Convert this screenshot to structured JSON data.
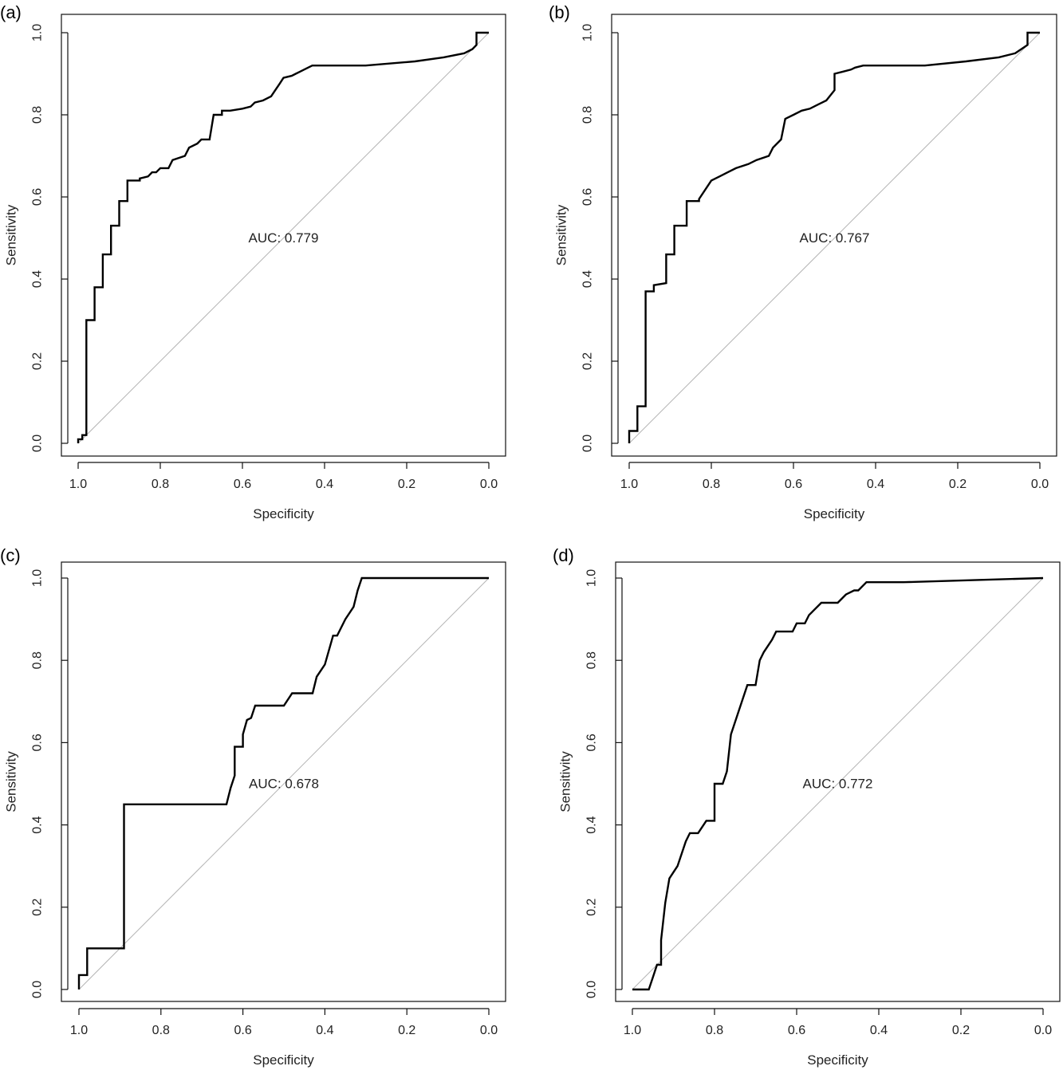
{
  "chart_data": [
    {
      "type": "line",
      "panel_label": "(a)",
      "xlabel": "Specificity",
      "ylabel": "Sensitivity",
      "xlim": [
        1.0,
        0.0
      ],
      "ylim": [
        0.0,
        1.0
      ],
      "x_ticks": [
        "1.0",
        "0.8",
        "0.6",
        "0.4",
        "0.2",
        "0.0"
      ],
      "y_ticks": [
        "0.0",
        "0.2",
        "0.4",
        "0.6",
        "0.8",
        "1.0"
      ],
      "annotation": "AUC: 0.779",
      "reference_line": "diagonal",
      "specificity": [
        1.0,
        1.0,
        0.99,
        0.99,
        0.98,
        0.98,
        0.96,
        0.96,
        0.94,
        0.94,
        0.92,
        0.92,
        0.9,
        0.9,
        0.88,
        0.88,
        0.85,
        0.85,
        0.83,
        0.82,
        0.81,
        0.8,
        0.78,
        0.77,
        0.74,
        0.73,
        0.71,
        0.7,
        0.68,
        0.67,
        0.65,
        0.65,
        0.63,
        0.6,
        0.58,
        0.57,
        0.55,
        0.53,
        0.52,
        0.51,
        0.5,
        0.48,
        0.47,
        0.46,
        0.45,
        0.43,
        0.3,
        0.18,
        0.11,
        0.06,
        0.04,
        0.03,
        0.03,
        0.0
      ],
      "sensitivity": [
        0.0,
        0.01,
        0.01,
        0.02,
        0.02,
        0.3,
        0.3,
        0.38,
        0.38,
        0.46,
        0.46,
        0.53,
        0.53,
        0.59,
        0.59,
        0.64,
        0.64,
        0.645,
        0.65,
        0.66,
        0.66,
        0.67,
        0.67,
        0.69,
        0.7,
        0.72,
        0.73,
        0.74,
        0.74,
        0.8,
        0.8,
        0.81,
        0.81,
        0.815,
        0.82,
        0.83,
        0.835,
        0.845,
        0.86,
        0.875,
        0.89,
        0.895,
        0.9,
        0.905,
        0.91,
        0.92,
        0.92,
        0.93,
        0.94,
        0.95,
        0.96,
        0.97,
        1.0,
        1.0
      ]
    },
    {
      "type": "line",
      "panel_label": "(b)",
      "xlabel": "Specificity",
      "ylabel": "Sensitivity",
      "xlim": [
        1.0,
        0.0
      ],
      "ylim": [
        0.0,
        1.0
      ],
      "x_ticks": [
        "1.0",
        "0.8",
        "0.6",
        "0.4",
        "0.2",
        "0.0"
      ],
      "y_ticks": [
        "0.0",
        "0.2",
        "0.4",
        "0.6",
        "0.8",
        "1.0"
      ],
      "annotation": "AUC: 0.767",
      "reference_line": "diagonal",
      "specificity": [
        1.0,
        1.0,
        0.98,
        0.98,
        0.96,
        0.96,
        0.94,
        0.94,
        0.91,
        0.91,
        0.89,
        0.89,
        0.86,
        0.86,
        0.83,
        0.83,
        0.8,
        0.78,
        0.76,
        0.74,
        0.71,
        0.69,
        0.66,
        0.65,
        0.63,
        0.62,
        0.6,
        0.58,
        0.56,
        0.54,
        0.52,
        0.5,
        0.5,
        0.48,
        0.46,
        0.45,
        0.43,
        0.28,
        0.18,
        0.1,
        0.06,
        0.03,
        0.03,
        0.0
      ],
      "sensitivity": [
        0.0,
        0.03,
        0.03,
        0.09,
        0.09,
        0.37,
        0.37,
        0.385,
        0.39,
        0.46,
        0.46,
        0.53,
        0.53,
        0.59,
        0.59,
        0.595,
        0.64,
        0.65,
        0.66,
        0.67,
        0.68,
        0.69,
        0.7,
        0.72,
        0.74,
        0.79,
        0.8,
        0.81,
        0.815,
        0.825,
        0.835,
        0.86,
        0.9,
        0.905,
        0.91,
        0.915,
        0.92,
        0.92,
        0.93,
        0.94,
        0.95,
        0.97,
        1.0,
        1.0
      ]
    },
    {
      "type": "line",
      "panel_label": "(c)",
      "xlabel": "Specificity",
      "ylabel": "Sensitivity",
      "xlim": [
        1.0,
        0.0
      ],
      "ylim": [
        0.0,
        1.0
      ],
      "x_ticks": [
        "1.0",
        "0.8",
        "0.6",
        "0.4",
        "0.2",
        "0.0"
      ],
      "y_ticks": [
        "0.0",
        "0.2",
        "0.4",
        "0.6",
        "0.8",
        "1.0"
      ],
      "annotation": "AUC: 0.678",
      "reference_line": "diagonal",
      "specificity": [
        1.0,
        1.0,
        0.98,
        0.98,
        0.89,
        0.89,
        0.64,
        0.63,
        0.62,
        0.62,
        0.6,
        0.6,
        0.59,
        0.58,
        0.57,
        0.57,
        0.5,
        0.5,
        0.48,
        0.46,
        0.43,
        0.42,
        0.42,
        0.4,
        0.38,
        0.37,
        0.35,
        0.33,
        0.32,
        0.31,
        0.0
      ],
      "sensitivity": [
        0.0,
        0.035,
        0.035,
        0.1,
        0.1,
        0.45,
        0.45,
        0.49,
        0.52,
        0.59,
        0.59,
        0.62,
        0.655,
        0.66,
        0.69,
        0.69,
        0.69,
        0.69,
        0.72,
        0.72,
        0.72,
        0.76,
        0.76,
        0.79,
        0.86,
        0.86,
        0.9,
        0.93,
        0.97,
        1.0,
        1.0
      ]
    },
    {
      "type": "line",
      "panel_label": "(d)",
      "xlabel": "Specificity",
      "ylabel": "Sensitivity",
      "xlim": [
        1.0,
        0.0
      ],
      "ylim": [
        0.0,
        1.0
      ],
      "x_ticks": [
        "1.0",
        "0.8",
        "0.6",
        "0.4",
        "0.2",
        "0.0"
      ],
      "y_ticks": [
        "0.0",
        "0.2",
        "0.4",
        "0.6",
        "0.8",
        "1.0"
      ],
      "annotation": "AUC: 0.772",
      "reference_line": "diagonal",
      "specificity": [
        1.0,
        0.96,
        0.95,
        0.94,
        0.93,
        0.93,
        0.92,
        0.91,
        0.91,
        0.89,
        0.88,
        0.87,
        0.86,
        0.84,
        0.82,
        0.8,
        0.8,
        0.78,
        0.77,
        0.76,
        0.76,
        0.74,
        0.72,
        0.7,
        0.69,
        0.68,
        0.66,
        0.65,
        0.61,
        0.6,
        0.58,
        0.57,
        0.55,
        0.54,
        0.5,
        0.48,
        0.46,
        0.45,
        0.43,
        0.34,
        0.0
      ],
      "sensitivity": [
        0.0,
        0.0,
        0.03,
        0.06,
        0.06,
        0.12,
        0.21,
        0.27,
        0.27,
        0.3,
        0.33,
        0.36,
        0.38,
        0.38,
        0.41,
        0.41,
        0.5,
        0.5,
        0.53,
        0.62,
        0.62,
        0.68,
        0.74,
        0.74,
        0.8,
        0.82,
        0.85,
        0.87,
        0.87,
        0.89,
        0.89,
        0.91,
        0.93,
        0.94,
        0.94,
        0.96,
        0.97,
        0.97,
        0.99,
        0.99,
        1.0
      ]
    }
  ]
}
